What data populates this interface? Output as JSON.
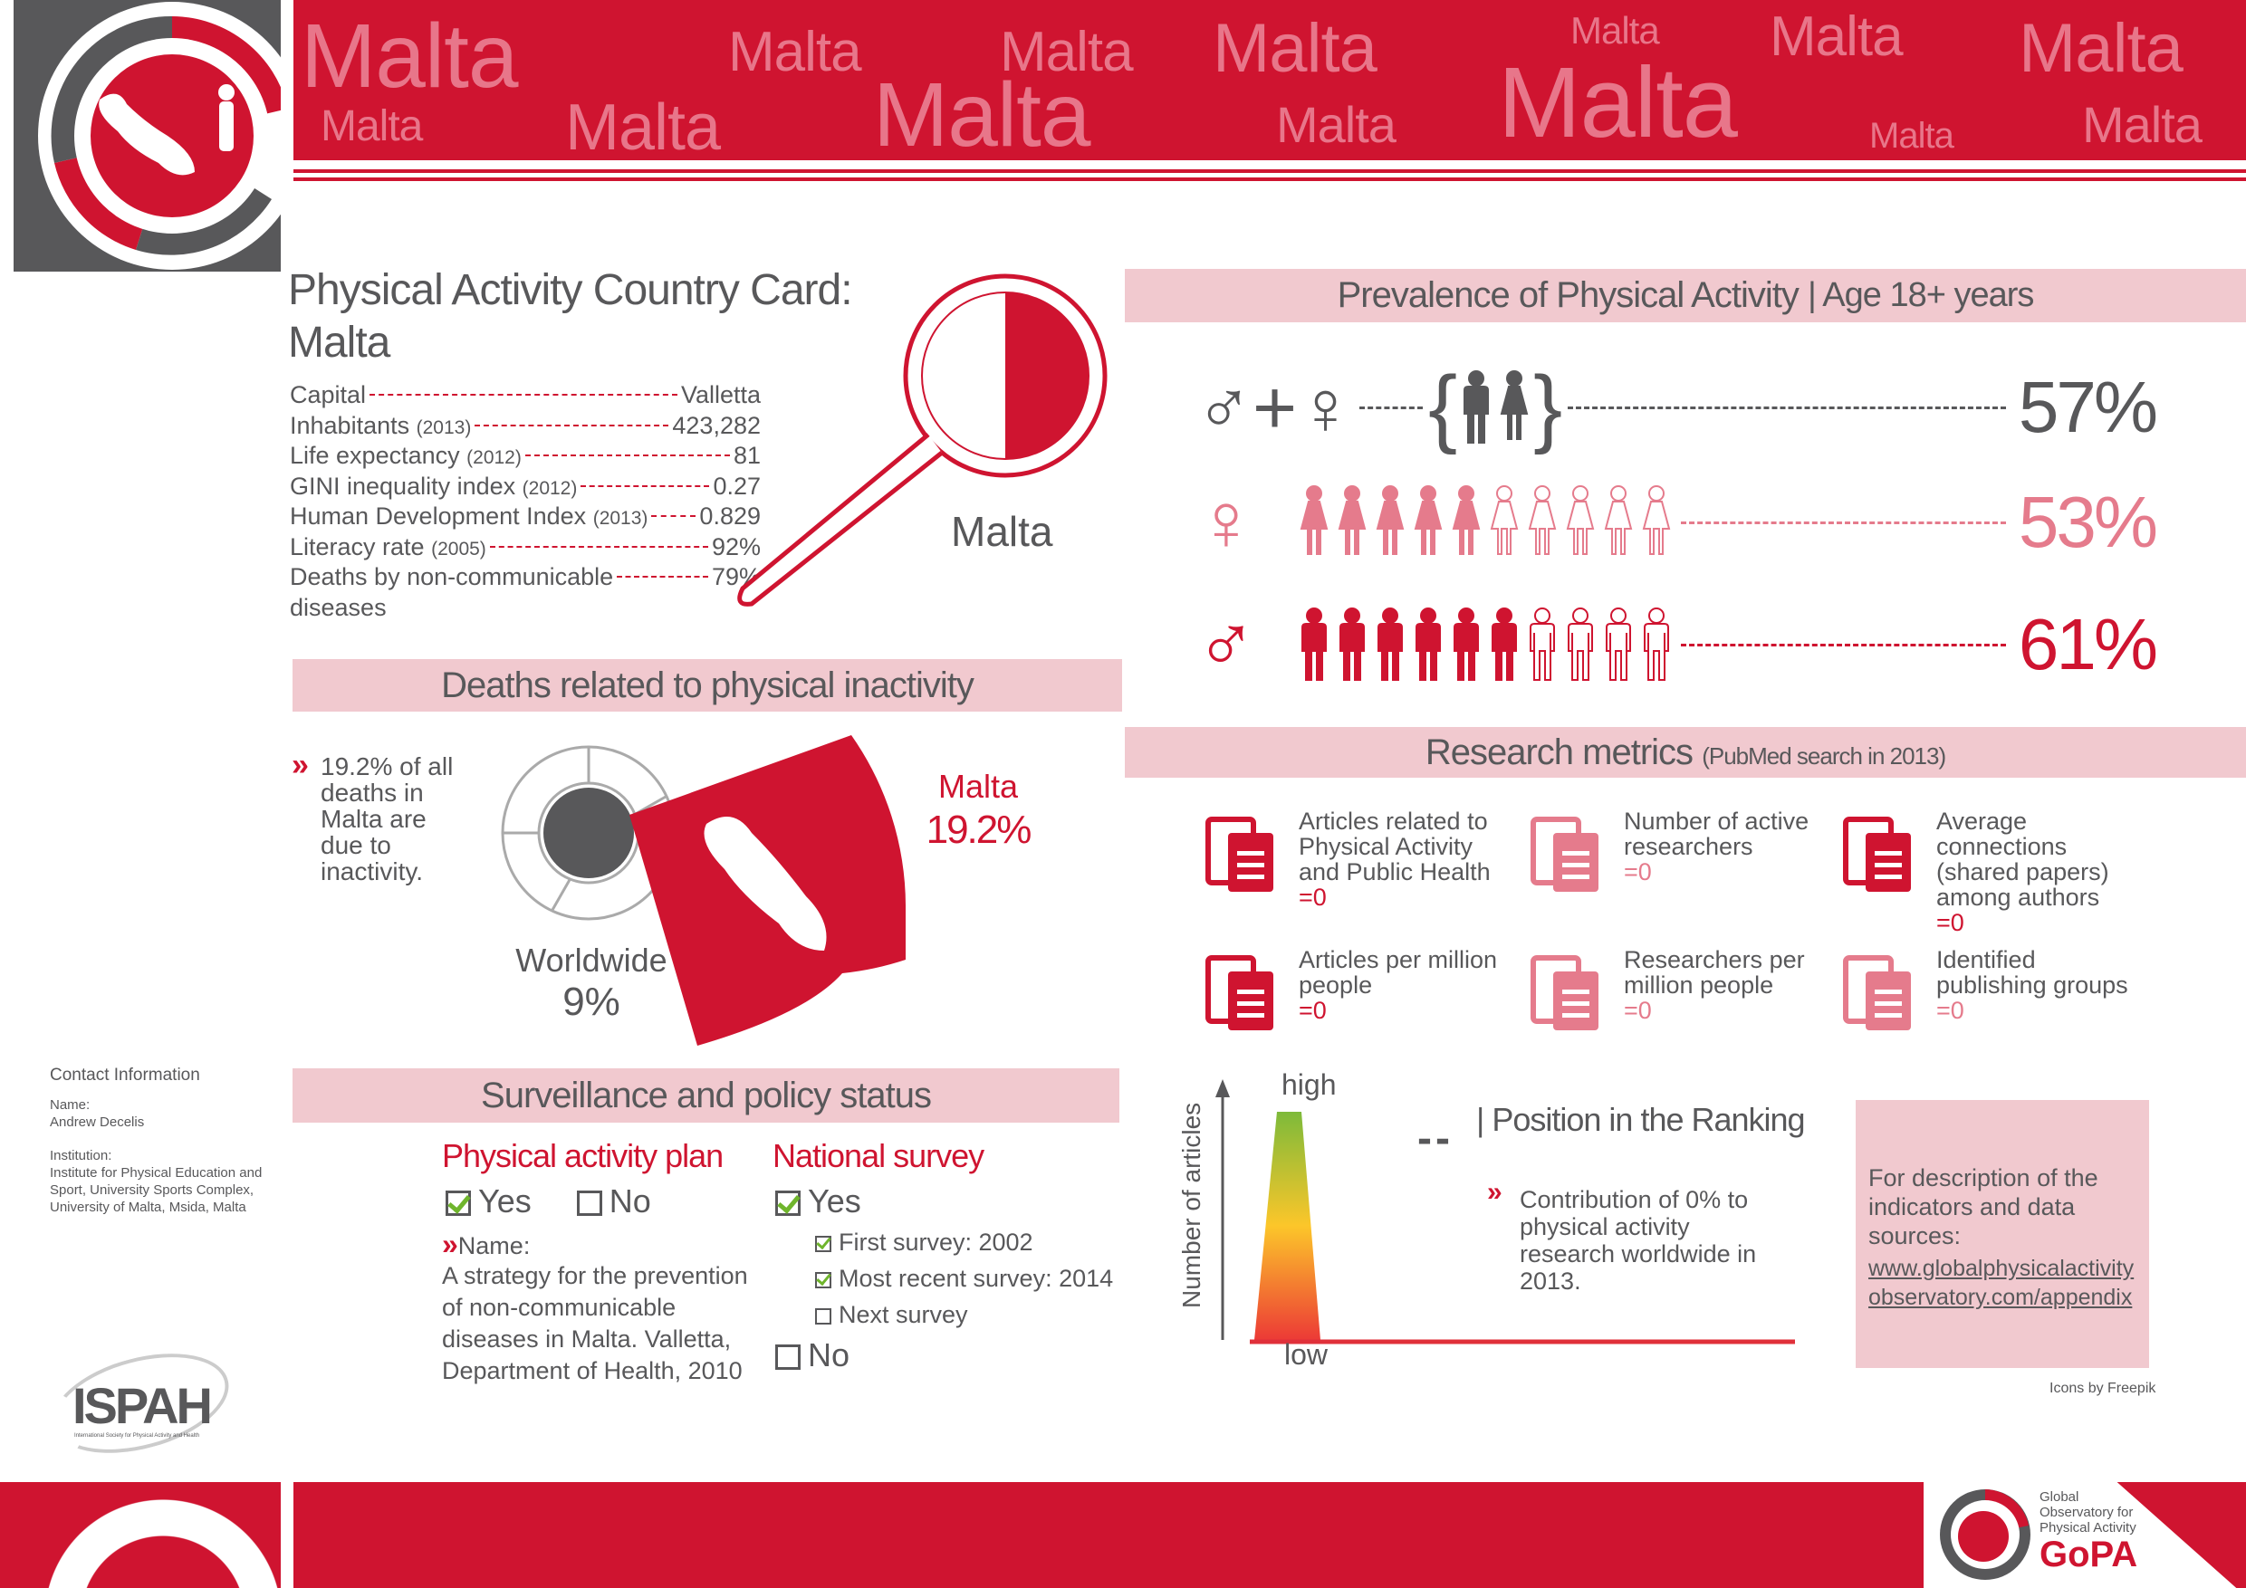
{
  "header": {
    "watermark_word": "Malta"
  },
  "colors": {
    "brand_red": "#cf1430",
    "pink_band": "#f1c9cf",
    "text_gray": "#58585a",
    "light_red": "#e57b8c"
  },
  "card": {
    "title_line1": "Physical Activity Country Card:",
    "title_line2": "Malta",
    "country_label": "Malta",
    "stats": [
      {
        "label": "Capital",
        "year": "",
        "value": "Valletta"
      },
      {
        "label": "Inhabitants",
        "year": "(2013)",
        "value": "423,282"
      },
      {
        "label": "Life expectancy",
        "year": "(2012)",
        "value": "81"
      },
      {
        "label": "GINI inequality index",
        "year": "(2012)",
        "value": "0.27"
      },
      {
        "label": "Human Development Index",
        "year": "(2013)",
        "value": "0.829"
      },
      {
        "label": "Literacy rate",
        "year": "(2005)",
        "value": "92%"
      },
      {
        "label": "Deaths by non-communicable",
        "label2": "diseases",
        "year": "",
        "value": "79%"
      }
    ]
  },
  "deaths": {
    "title": "Deaths related to physical inactivity",
    "bullet": "»",
    "text": "19.2% of all deaths in Malta are due to inactivity.",
    "malta_label": "Malta",
    "malta_value": "19.2%",
    "world_label": "Worldwide",
    "world_value": "9%",
    "malta_percent": 19.2,
    "world_percent": 9
  },
  "prevalence": {
    "title": "Prevalence of Physical Activity",
    "subtitle": "| Age 18+ years",
    "rows": [
      {
        "group": "both",
        "value": "57%",
        "percent": 57
      },
      {
        "group": "female",
        "value": "53%",
        "percent": 53
      },
      {
        "group": "male",
        "value": "61%",
        "percent": 61
      }
    ]
  },
  "research": {
    "title": "Research metrics",
    "subtitle": "(PubMed search in 2013)",
    "metrics": [
      {
        "icon": "documents-icon",
        "label": "Articles related to Physical Activity and Public Health",
        "value": "=0"
      },
      {
        "icon": "researcher-icon",
        "label": "Number of active researchers",
        "value": "=0"
      },
      {
        "icon": "network-icon",
        "label": "Average connections (shared papers) among authors",
        "value": "=0"
      },
      {
        "icon": "articles-per-people-icon",
        "label": "Articles per million people",
        "value": "=0"
      },
      {
        "icon": "researchers-per-people-icon",
        "label": "Researchers per million people",
        "value": "=0"
      },
      {
        "icon": "factory-icon",
        "label": "Identified publishing groups",
        "value": "=0"
      }
    ]
  },
  "ranking": {
    "y_axis": "Number of articles",
    "high": "high",
    "low": "low",
    "position": "--",
    "title": "| Position in the Ranking",
    "bullet": "»",
    "text": "Contribution of 0% to physical activity research worldwide in 2013."
  },
  "info_box": {
    "text": "For description of the indicators and data sources:",
    "link1": "www.globalphysicalactivity",
    "link2": "observatory.com/appendix"
  },
  "credits": "Icons by Freepik",
  "surveillance": {
    "title": "Surveillance and  policy status",
    "plan": {
      "title": "Physical activity plan",
      "yes": "Yes",
      "no": "No",
      "yes_checked": true,
      "name_label": "Name:",
      "bullet": "»",
      "name": "A strategy for the prevention of non-communicable diseases in Malta. Valletta, Department of Health, 2010"
    },
    "survey": {
      "title": "National survey",
      "yes": "Yes",
      "no": "No",
      "first": "First survey: 2002",
      "recent": "Most recent survey: 2014",
      "next": "Next survey"
    }
  },
  "contact": {
    "title": "Contact Information",
    "name_label": "Name:",
    "name": "Andrew Decelis",
    "inst_label": "Institution:",
    "institution": "Institute for Physical Education and Sport, University Sports Complex, University of Malta, Msida, Malta"
  },
  "logos": {
    "ispah": "ISPAH",
    "ispah_sub": "International Society for Physical Activity and Health",
    "gopa_line1": "Global",
    "gopa_line2": "Observatory for",
    "gopa_line3": "Physical Activity",
    "gopa_mark": "GoPA"
  }
}
